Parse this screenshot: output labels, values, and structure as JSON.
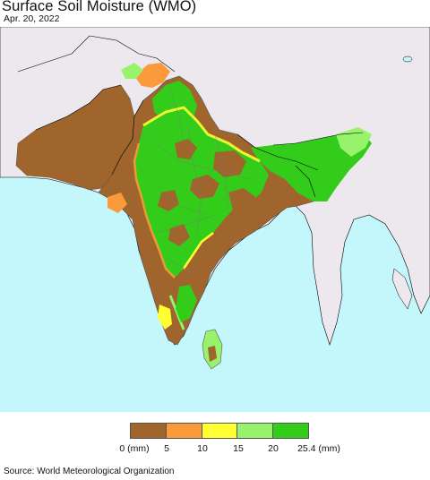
{
  "title": "Surface Soil Moisture (WMO)",
  "date": "Apr. 20, 2022",
  "legend": {
    "colors": [
      "#a0652d",
      "#fb9a3a",
      "#ffff33",
      "#99f26b",
      "#33cc1a"
    ],
    "ticks": [
      "0 (mm)",
      "5",
      "10",
      "15",
      "20",
      "25.4 (mm)"
    ]
  },
  "source": "Source: World Meteorological Organization",
  "map_colors": {
    "ocean": "#c4f7fb",
    "land_outside": "#ece8ee",
    "dry": "#a0652d",
    "low": "#fb9a3a",
    "mid": "#ffff33",
    "moist": "#99f26b",
    "wet": "#33cc1a"
  }
}
